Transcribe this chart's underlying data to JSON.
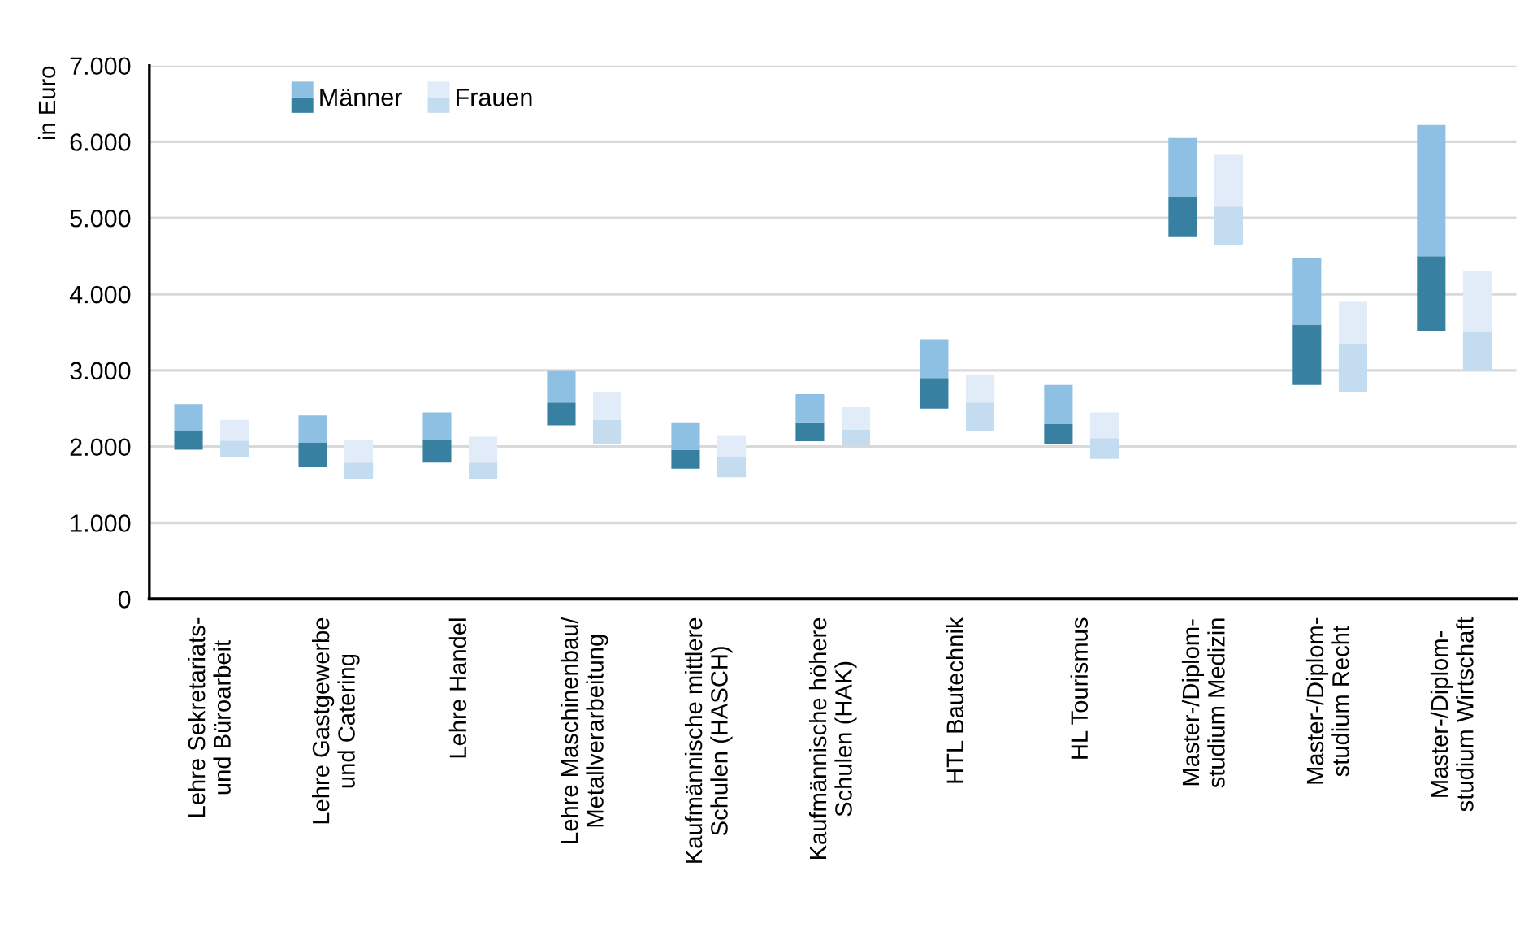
{
  "chart_data": {
    "type": "bar",
    "ylabel": "in Euro",
    "categories": [
      "Lehre Sekretariats-\nund Büroarbeit",
      "Lehre Gastgewerbe\nund Catering",
      "Lehre Handel",
      "Lehre Maschinenbau/\nMetallverarbeitung",
      "Kaufmännische mittlere\nSchulen (HASCH)",
      "Kaufmännische höhere\nSchulen (HAK)",
      "HTL Bautechnik",
      "HL Tourismus",
      "Master-/Diplom-\nstudium Medizin",
      "Master-/Diplom-\nstudium Recht",
      "Master-/Diplom-\nstudium Wirtschaft"
    ],
    "series": [
      {
        "color": "#3780a2",
        "base": [
          1960,
          1730,
          1790,
          2280,
          1710,
          2070,
          2500,
          2030,
          4750,
          2810,
          3520
        ],
        "values": [
          240,
          320,
          300,
          300,
          250,
          250,
          400,
          270,
          530,
          790,
          980
        ]
      },
      {
        "name": "Männer",
        "color": "#8dc0e2",
        "base": [
          2200,
          2050,
          2090,
          2580,
          1960,
          2320,
          2900,
          2300,
          5280,
          3600,
          4500
        ],
        "values": [
          360,
          360,
          360,
          420,
          360,
          370,
          510,
          510,
          770,
          870,
          1720
        ]
      },
      {
        "color": "#c3dcf0",
        "base": [
          1860,
          1580,
          1580,
          2030,
          1600,
          2010,
          2200,
          1840,
          4640,
          2710,
          3000
        ],
        "values": [
          220,
          210,
          210,
          320,
          260,
          210,
          380,
          270,
          510,
          640,
          510
        ]
      },
      {
        "name": "Frauen",
        "color": "#e1ecf8",
        "base": [
          2080,
          1790,
          1790,
          2350,
          1860,
          2220,
          2580,
          2110,
          5150,
          3350,
          3510
        ],
        "values": [
          270,
          300,
          340,
          360,
          290,
          300,
          360,
          340,
          680,
          550,
          790
        ]
      }
    ],
    "ylim": [
      0,
      7000
    ],
    "yticks": [
      0,
      {
        "value": 1000,
        "label": "1.000"
      },
      {
        "value": 2000,
        "label": "2.000"
      },
      {
        "value": 3000,
        "label": "3.000"
      },
      {
        "value": 4000,
        "label": "4.000"
      },
      {
        "value": 5000,
        "label": "5.000"
      },
      {
        "value": 6000,
        "label": "6.000"
      },
      {
        "value": 7000,
        "label": "7.000"
      }
    ],
    "grid": "y",
    "legend": "top left"
  }
}
